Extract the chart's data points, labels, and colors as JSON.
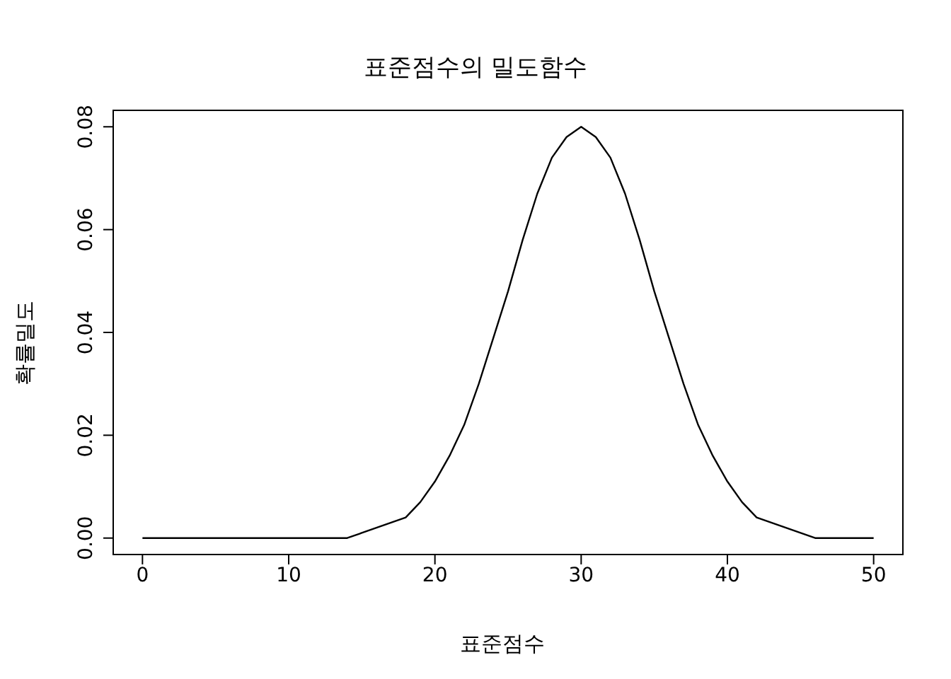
{
  "chart_data": {
    "type": "line",
    "title": "표준점수의 밀도함수",
    "xlabel": "표준점수",
    "ylabel": "확률밀도",
    "x": [
      0,
      1,
      2,
      3,
      4,
      5,
      6,
      7,
      8,
      9,
      10,
      11,
      12,
      13,
      14,
      15,
      16,
      17,
      18,
      19,
      20,
      21,
      22,
      23,
      24,
      25,
      26,
      27,
      28,
      29,
      30,
      31,
      32,
      33,
      34,
      35,
      36,
      37,
      38,
      39,
      40,
      41,
      42,
      43,
      44,
      45,
      46,
      47,
      48,
      49,
      50
    ],
    "series": [
      {
        "color": "#000000",
        "values": [
          0,
          0,
          0,
          0,
          0,
          0,
          0,
          0,
          0,
          0,
          0,
          0,
          0,
          0,
          0,
          0.001,
          0.002,
          0.003,
          0.004,
          0.007,
          0.011,
          0.016,
          0.022,
          0.03,
          0.039,
          0.048,
          0.058,
          0.067,
          0.074,
          0.078,
          0.08,
          0.078,
          0.074,
          0.067,
          0.058,
          0.048,
          0.039,
          0.03,
          0.022,
          0.016,
          0.011,
          0.007,
          0.004,
          0.003,
          0.002,
          0.001,
          0,
          0,
          0,
          0,
          0
        ]
      }
    ],
    "xlim": [
      -2,
      52
    ],
    "xticks": [
      0,
      10,
      20,
      30,
      40,
      50
    ],
    "ylim": [
      -0.0032,
      0.0832
    ],
    "yticks": [
      {
        "value": 0,
        "label": "0.00"
      },
      {
        "value": 0.02,
        "label": "0.02"
      },
      {
        "value": 0.04,
        "label": "0.04"
      },
      {
        "value": 0.06,
        "label": "0.06"
      },
      {
        "value": 0.08,
        "label": "0.08"
      }
    ],
    "grid": false,
    "marker": "none",
    "line_style": "solid"
  }
}
